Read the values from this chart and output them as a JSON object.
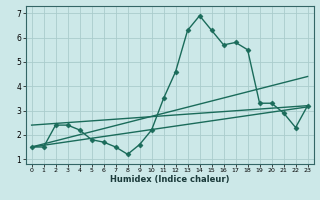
{
  "xlabel": "Humidex (Indice chaleur)",
  "ylabel": "",
  "xlim": [
    -0.5,
    23.5
  ],
  "ylim": [
    0.8,
    7.3
  ],
  "xticks": [
    0,
    1,
    2,
    3,
    4,
    5,
    6,
    7,
    8,
    9,
    10,
    11,
    12,
    13,
    14,
    15,
    16,
    17,
    18,
    19,
    20,
    21,
    22,
    23
  ],
  "yticks": [
    1,
    2,
    3,
    4,
    5,
    6,
    7
  ],
  "bg_color": "#cce8e8",
  "grid_color": "#aacccc",
  "line_color": "#1a6b5a",
  "lines": [
    {
      "x": [
        0,
        1,
        2,
        3,
        4,
        5,
        6,
        7,
        8,
        9,
        10,
        11,
        12,
        13,
        14,
        15,
        16,
        17,
        18,
        19,
        20,
        21,
        22,
        23
      ],
      "y": [
        1.5,
        1.5,
        2.4,
        2.4,
        2.2,
        1.8,
        1.7,
        1.5,
        1.2,
        1.6,
        2.2,
        3.5,
        4.6,
        6.3,
        6.9,
        6.3,
        5.7,
        5.8,
        5.5,
        3.3,
        3.3,
        2.9,
        2.3,
        3.2
      ],
      "marker": "D",
      "markersize": 2.5,
      "linewidth": 1.0
    },
    {
      "x": [
        0,
        23
      ],
      "y": [
        1.5,
        4.4
      ],
      "marker": null,
      "linewidth": 1.0
    },
    {
      "x": [
        0,
        23
      ],
      "y": [
        1.5,
        3.15
      ],
      "marker": null,
      "linewidth": 1.0
    },
    {
      "x": [
        0,
        23
      ],
      "y": [
        2.4,
        3.2
      ],
      "marker": null,
      "linewidth": 1.0
    }
  ]
}
